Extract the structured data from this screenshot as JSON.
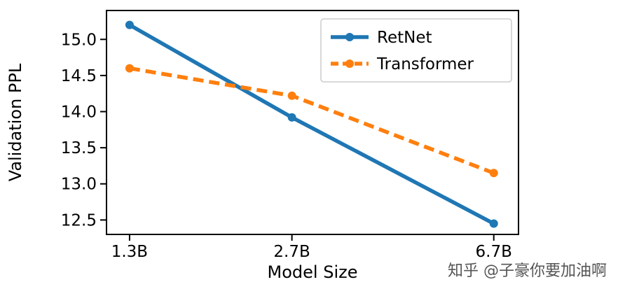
{
  "chart_data": {
    "type": "line",
    "title": "",
    "xlabel": "Model Size",
    "ylabel": "Validation PPL",
    "x_tick_labels": [
      "1.3B",
      "2.7B",
      "6.7B"
    ],
    "x_values": [
      1.3,
      2.7,
      6.7
    ],
    "x_scale": "log",
    "yticks": [
      12.5,
      13.0,
      13.5,
      14.0,
      14.5,
      15.0
    ],
    "ylim": [
      12.3,
      15.4
    ],
    "grid": false,
    "legend_position": "upper right",
    "series": [
      {
        "name": "RetNet",
        "color": "#1f77b4",
        "style": "solid",
        "marker": "circle",
        "values": [
          15.2,
          13.92,
          12.45
        ]
      },
      {
        "name": "Transformer",
        "color": "#ff7f0e",
        "style": "dashed",
        "marker": "circle",
        "values": [
          14.6,
          14.22,
          13.15
        ]
      }
    ]
  },
  "watermark": {
    "text": "知乎 @子豪你要加油啊"
  }
}
